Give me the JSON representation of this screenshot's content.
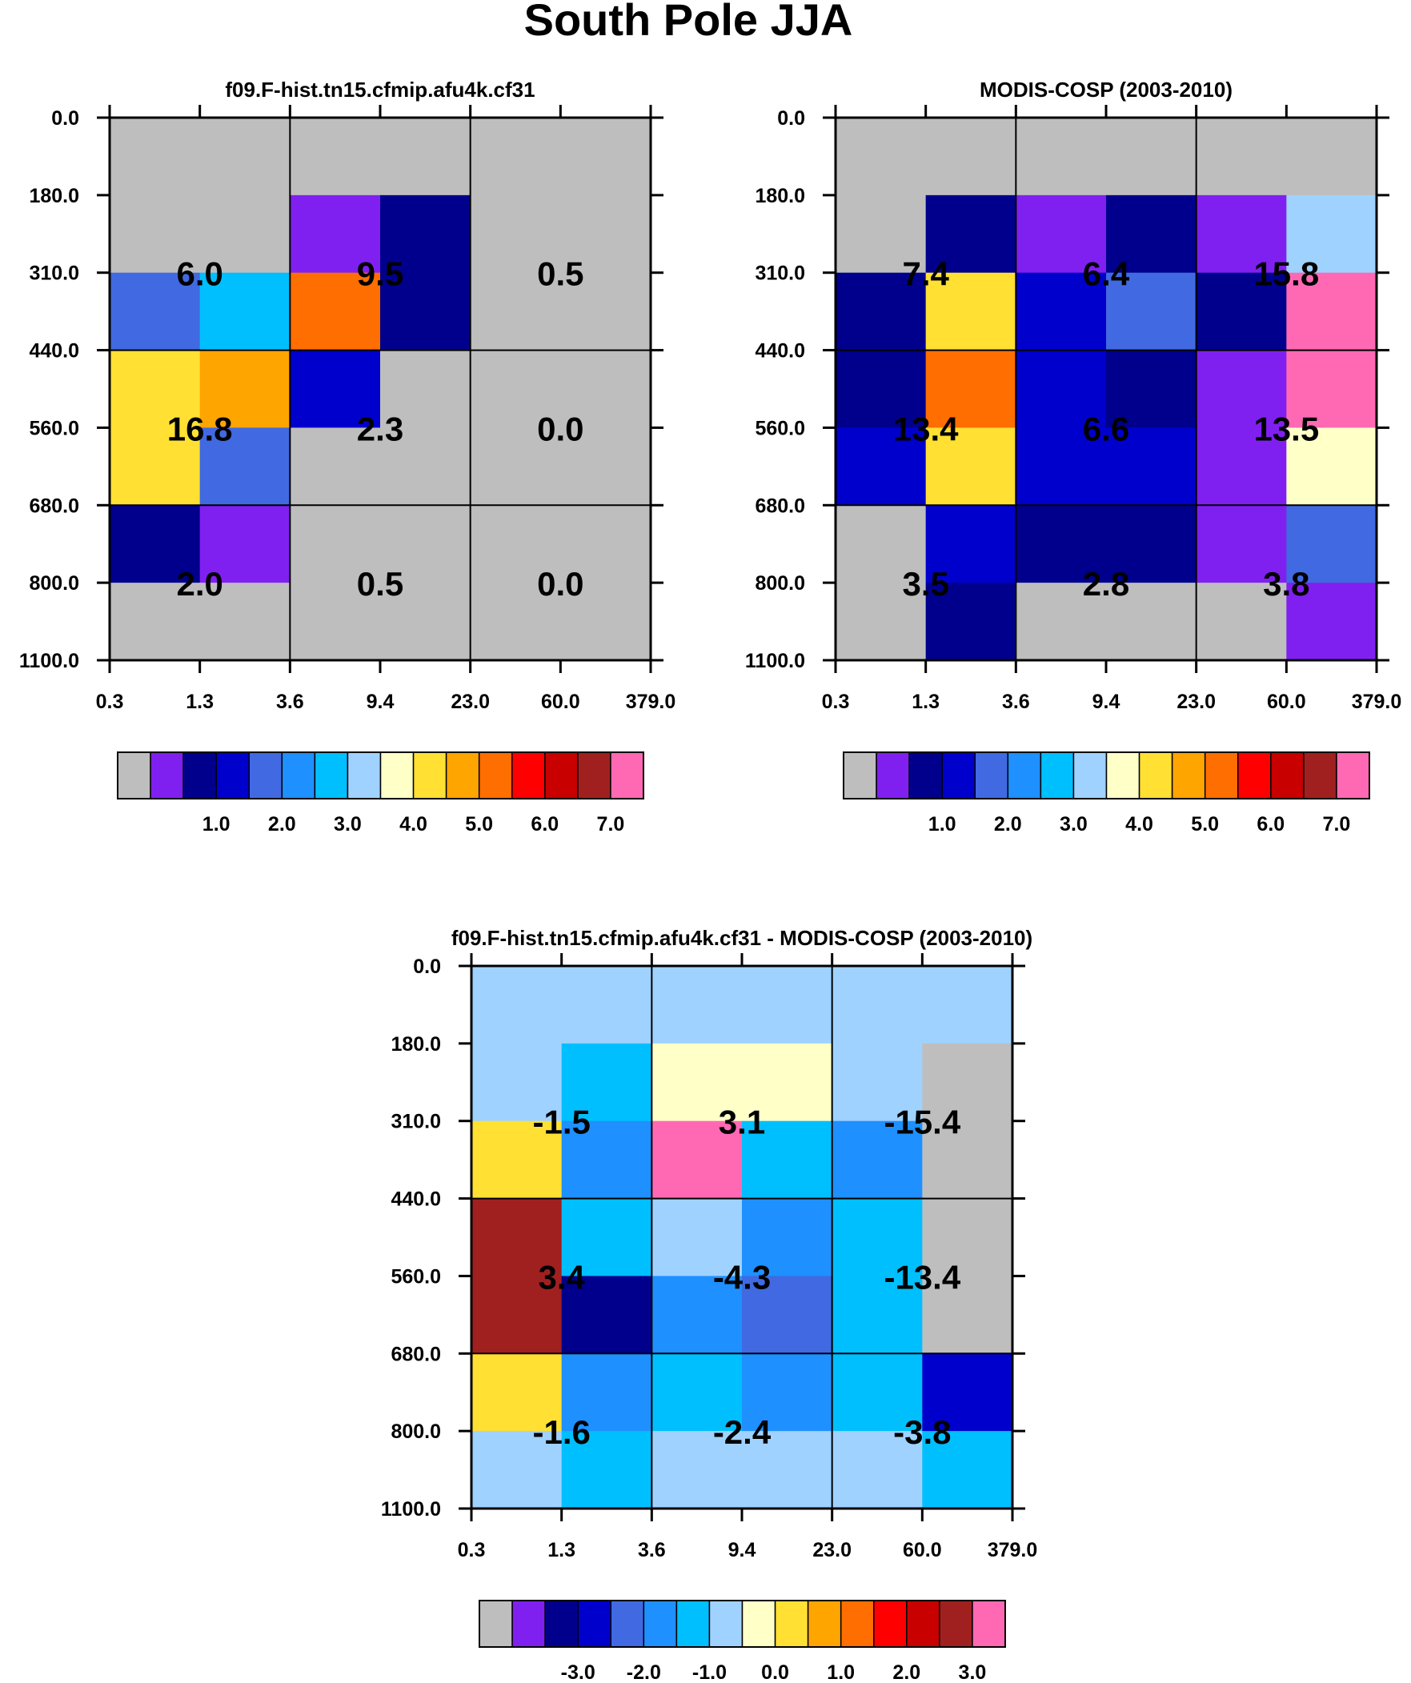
{
  "title": "South Pole JJA",
  "chart_data": [
    {
      "type": "heatmap",
      "title": "f09.F-hist.tn15.cfmip.afu4k.cf31",
      "y_ticks": [
        "0.0",
        "180.0",
        "310.0",
        "440.0",
        "560.0",
        "680.0",
        "800.0",
        "1100.0"
      ],
      "x_ticks": [
        "0.3",
        "1.3",
        "3.6",
        "9.4",
        "23.0",
        "60.0",
        "379.0"
      ],
      "cell_colors": [
        [
          "#bebebe",
          "#bebebe",
          "#bebebe",
          "#bebebe",
          "#bebebe",
          "#bebebe"
        ],
        [
          "#bebebe",
          "#bebebe",
          "#8020f0",
          "#00008c",
          "#bebebe",
          "#bebebe"
        ],
        [
          "#4169e1",
          "#00bfff",
          "#ff6e00",
          "#00008c",
          "#bebebe",
          "#bebebe"
        ],
        [
          "#ffe033",
          "#ffa500",
          "#0000cd",
          "#bebebe",
          "#bebebe",
          "#bebebe"
        ],
        [
          "#ffe033",
          "#4169e1",
          "#bebebe",
          "#bebebe",
          "#bebebe",
          "#bebebe"
        ],
        [
          "#00008c",
          "#8020f0",
          "#bebebe",
          "#bebebe",
          "#bebebe",
          "#bebebe"
        ],
        [
          "#bebebe",
          "#bebebe",
          "#bebebe",
          "#bebebe",
          "#bebebe",
          "#bebebe"
        ]
      ],
      "totals": [
        [
          "6.0",
          "9.5",
          "0.5"
        ],
        [
          "16.8",
          "2.3",
          "0.0"
        ],
        [
          "2.0",
          "0.5",
          "0.0"
        ]
      ],
      "colorbar": {
        "colors": [
          "#bebebe",
          "#8020f0",
          "#00008c",
          "#0000cd",
          "#4169e1",
          "#1e90ff",
          "#00bfff",
          "#a0d2ff",
          "#ffffc8",
          "#ffe033",
          "#ffa500",
          "#ff6e00",
          "#ff0000",
          "#c80000",
          "#a02020",
          "#ff69b4"
        ],
        "labels": [
          "1.0",
          "2.0",
          "3.0",
          "4.0",
          "5.0",
          "6.0",
          "7.0"
        ]
      }
    },
    {
      "type": "heatmap",
      "title": "MODIS-COSP (2003-2010)",
      "y_ticks": [
        "0.0",
        "180.0",
        "310.0",
        "440.0",
        "560.0",
        "680.0",
        "800.0",
        "1100.0"
      ],
      "x_ticks": [
        "0.3",
        "1.3",
        "3.6",
        "9.4",
        "23.0",
        "60.0",
        "379.0"
      ],
      "cell_colors": [
        [
          "#bebebe",
          "#bebebe",
          "#bebebe",
          "#bebebe",
          "#bebebe",
          "#bebebe"
        ],
        [
          "#bebebe",
          "#00008c",
          "#8020f0",
          "#00008c",
          "#8020f0",
          "#a0d2ff"
        ],
        [
          "#00008c",
          "#ffe033",
          "#0000cd",
          "#4169e1",
          "#00008c",
          "#ff69b4"
        ],
        [
          "#00008c",
          "#ff6e00",
          "#0000cd",
          "#00008c",
          "#8020f0",
          "#ff69b4"
        ],
        [
          "#0000cd",
          "#ffe033",
          "#0000cd",
          "#0000cd",
          "#8020f0",
          "#ffffc8"
        ],
        [
          "#bebebe",
          "#0000cd",
          "#00008c",
          "#00008c",
          "#8020f0",
          "#4169e1"
        ],
        [
          "#bebebe",
          "#00008c",
          "#bebebe",
          "#bebebe",
          "#bebebe",
          "#8020f0"
        ]
      ],
      "totals": [
        [
          "7.4",
          "6.4",
          "15.8"
        ],
        [
          "13.4",
          "6.6",
          "13.5"
        ],
        [
          "3.5",
          "2.8",
          "3.8"
        ]
      ],
      "colorbar": {
        "colors": [
          "#bebebe",
          "#8020f0",
          "#00008c",
          "#0000cd",
          "#4169e1",
          "#1e90ff",
          "#00bfff",
          "#a0d2ff",
          "#ffffc8",
          "#ffe033",
          "#ffa500",
          "#ff6e00",
          "#ff0000",
          "#c80000",
          "#a02020",
          "#ff69b4"
        ],
        "labels": [
          "1.0",
          "2.0",
          "3.0",
          "4.0",
          "5.0",
          "6.0",
          "7.0"
        ]
      }
    },
    {
      "type": "heatmap",
      "title": "f09.F-hist.tn15.cfmip.afu4k.cf31 - MODIS-COSP (2003-2010)",
      "y_ticks": [
        "0.0",
        "180.0",
        "310.0",
        "440.0",
        "560.0",
        "680.0",
        "800.0",
        "1100.0"
      ],
      "x_ticks": [
        "0.3",
        "1.3",
        "3.6",
        "9.4",
        "23.0",
        "60.0",
        "379.0"
      ],
      "cell_colors": [
        [
          "#a0d2ff",
          "#a0d2ff",
          "#a0d2ff",
          "#a0d2ff",
          "#a0d2ff",
          "#a0d2ff"
        ],
        [
          "#a0d2ff",
          "#00bfff",
          "#ffffc8",
          "#ffffc8",
          "#a0d2ff",
          "#bebebe"
        ],
        [
          "#ffe033",
          "#1e90ff",
          "#ff69b4",
          "#00bfff",
          "#1e90ff",
          "#bebebe"
        ],
        [
          "#a02020",
          "#00bfff",
          "#a0d2ff",
          "#1e90ff",
          "#00bfff",
          "#bebebe"
        ],
        [
          "#a02020",
          "#00008c",
          "#1e90ff",
          "#4169e1",
          "#00bfff",
          "#bebebe"
        ],
        [
          "#ffe033",
          "#1e90ff",
          "#00bfff",
          "#1e90ff",
          "#00bfff",
          "#0000cd"
        ],
        [
          "#a0d2ff",
          "#00bfff",
          "#a0d2ff",
          "#a0d2ff",
          "#a0d2ff",
          "#00bfff"
        ]
      ],
      "totals": [
        [
          "-1.5",
          "3.1",
          "-15.4"
        ],
        [
          "3.4",
          "-4.3",
          "-13.4"
        ],
        [
          "-1.6",
          "-2.4",
          "-3.8"
        ]
      ],
      "colorbar": {
        "colors": [
          "#bebebe",
          "#8020f0",
          "#00008c",
          "#0000cd",
          "#4169e1",
          "#1e90ff",
          "#00bfff",
          "#a0d2ff",
          "#ffffc8",
          "#ffe033",
          "#ffa500",
          "#ff6e00",
          "#ff0000",
          "#c80000",
          "#a02020",
          "#ff69b4"
        ],
        "labels": [
          "-3.0",
          "-2.0",
          "-1.0",
          "0.0",
          "1.0",
          "2.0",
          "3.0"
        ]
      }
    }
  ]
}
